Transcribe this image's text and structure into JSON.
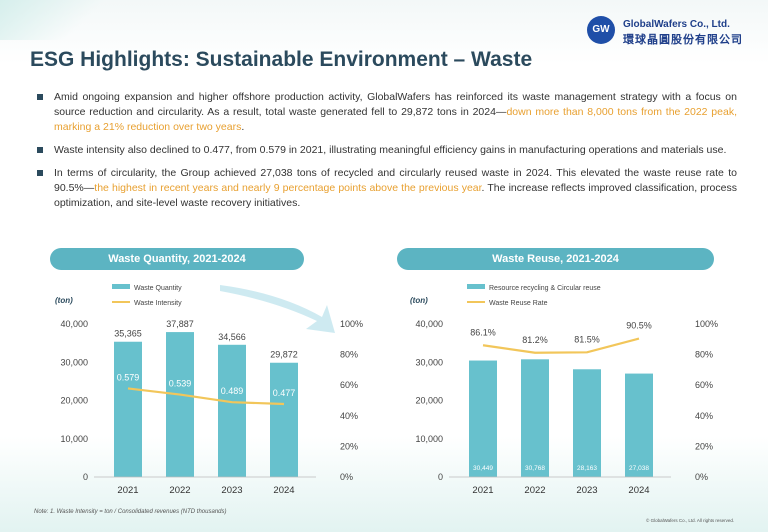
{
  "logo": {
    "mark": "GW",
    "name_en": "GlobalWafers Co., Ltd.",
    "name_zh": "環球晶圓股份有限公司"
  },
  "title": "ESG Highlights: Sustainable Environment – Waste",
  "bullets": [
    {
      "text": "Amid ongoing expansion and higher offshore production activity, GlobalWafers has reinforced its waste management strategy with a focus on source reduction and circularity. As a result, total waste generated fell to 29,872 tons in 2024—",
      "highlight": "down more than 8,000 tons from the 2022 peak, marking a 21% reduction over two years",
      "tail": "."
    },
    {
      "text": "Waste intensity also declined to 0.477, from 0.579 in 2021, illustrating meaningful efficiency gains in manufacturing operations and materials use.",
      "highlight": "",
      "tail": ""
    },
    {
      "text": "In terms of circularity, the Group achieved 27,038 tons of recycled and circularly reused waste in 2024. This elevated the waste reuse rate to 90.5%—",
      "highlight": "the highest in recent years and nearly 9 percentage points above the previous year",
      "tail": ". The increase reflects improved classification, process optimization, and site-level waste recovery initiatives."
    }
  ],
  "footnote": "Note: 1. Waste Intensity = ton / Consolidated revenues (NTD thousands)",
  "copyright": "© GlobalWafers Co., Ltd. All rights reserved.",
  "colors": {
    "bar": "#67c1cd",
    "line": "#f2c65a",
    "title": "#2b4a5d",
    "highlight": "#e8a030",
    "pill": "#5cb4c2"
  },
  "chart_data": [
    {
      "type": "bar",
      "title": "Waste Quantity, 2021-2024",
      "categories": [
        "2021",
        "2022",
        "2023",
        "2024"
      ],
      "ylabel": "(ton)",
      "ylim": [
        0,
        40000
      ],
      "yticks": [
        "0",
        "10,000",
        "20,000",
        "30,000",
        "40,000"
      ],
      "y2lim": [
        0,
        1
      ],
      "y2ticks": [
        "0%",
        "20%",
        "40%",
        "60%",
        "80%",
        "100%"
      ],
      "series": [
        {
          "name": "Waste Quantity",
          "kind": "bar",
          "values": [
            35365,
            37887,
            34566,
            29872
          ],
          "labels": [
            "35,365",
            "37,887",
            "34,566",
            "29,872"
          ],
          "label_pos": "top"
        },
        {
          "name": "Waste Intensity",
          "kind": "line",
          "values": [
            0.579,
            0.539,
            0.489,
            0.477
          ],
          "labels": [
            "0.579",
            "0.539",
            "0.489",
            "0.477"
          ]
        }
      ]
    },
    {
      "type": "bar",
      "title": "Waste Reuse, 2021-2024",
      "categories": [
        "2021",
        "2022",
        "2023",
        "2024"
      ],
      "ylabel": "(ton)",
      "ylim": [
        0,
        40000
      ],
      "yticks": [
        "0",
        "10,000",
        "20,000",
        "30,000",
        "40,000"
      ],
      "y2lim": [
        0,
        1
      ],
      "y2ticks": [
        "0%",
        "20%",
        "40%",
        "60%",
        "80%",
        "100%"
      ],
      "series": [
        {
          "name": "Resource recycling & Circular reuse",
          "kind": "bar",
          "values": [
            30449,
            30768,
            28163,
            27038
          ],
          "labels": [
            "30,449",
            "30,768",
            "28,163",
            "27,038"
          ],
          "label_pos": "inside"
        },
        {
          "name": "Waste Reuse Rate",
          "kind": "line",
          "values": [
            0.861,
            0.812,
            0.815,
            0.905
          ],
          "labels": [
            "86.1%",
            "81.2%",
            "81.5%",
            "90.5%"
          ]
        }
      ]
    }
  ]
}
